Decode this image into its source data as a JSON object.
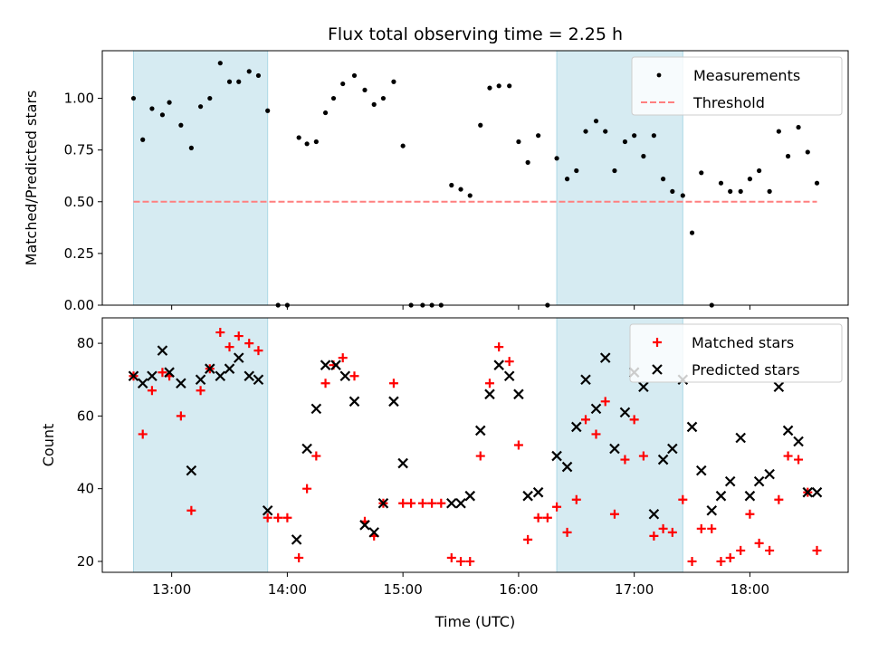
{
  "figure": {
    "title": "Flux total observing time = 2.25 h",
    "xlabel": "Time (UTC)"
  },
  "colors": {
    "shade": "#add8e6",
    "measurement": "#000000",
    "threshold": "#ff7f7f",
    "matched": "#ff0000",
    "predicted": "#000000"
  },
  "chart_data": [
    {
      "type": "scatter",
      "ylabel": "Matched/Predicted stars",
      "ylim": [
        0,
        1.23
      ],
      "xlim": [
        12.4,
        18.85
      ],
      "legend_placement": "upper-right",
      "shaded_intervals": [
        [
          12.67,
          13.83
        ],
        [
          16.33,
          17.42
        ]
      ],
      "yticks": [
        {
          "v": 0.0,
          "label": "0.00"
        },
        {
          "v": 0.25,
          "label": "0.25"
        },
        {
          "v": 0.5,
          "label": "0.50"
        },
        {
          "v": 0.75,
          "label": "0.75"
        },
        {
          "v": 1.0,
          "label": "1.00"
        }
      ],
      "series": [
        {
          "name": "Measurements",
          "kind": "dot",
          "x": [
            12.67,
            12.75,
            12.83,
            12.92,
            12.98,
            13.08,
            13.17,
            13.25,
            13.33,
            13.42,
            13.5,
            13.58,
            13.67,
            13.75,
            13.83,
            13.92,
            14.0,
            14.1,
            14.17,
            14.25,
            14.33,
            14.4,
            14.48,
            14.58,
            14.67,
            14.75,
            14.83,
            14.92,
            15.0,
            15.07,
            15.17,
            15.25,
            15.33,
            15.42,
            15.5,
            15.58,
            15.67,
            15.75,
            15.83,
            15.92,
            16.0,
            16.08,
            16.17,
            16.25,
            16.33,
            16.42,
            16.5,
            16.58,
            16.67,
            16.75,
            16.83,
            16.92,
            17.0,
            17.08,
            17.17,
            17.25,
            17.33,
            17.42,
            17.5,
            17.58,
            17.67,
            17.75,
            17.83,
            17.92,
            18.0,
            18.08,
            18.17,
            18.25,
            18.33,
            18.42,
            18.5,
            18.58
          ],
          "y": [
            1.0,
            0.8,
            0.95,
            0.92,
            0.98,
            0.87,
            0.76,
            0.96,
            1.0,
            1.17,
            1.08,
            1.08,
            1.13,
            1.11,
            0.94,
            0.0,
            0.0,
            0.81,
            0.78,
            0.79,
            0.93,
            1.0,
            1.07,
            1.11,
            1.04,
            0.97,
            1.0,
            1.08,
            0.77,
            0.0,
            0.0,
            0.0,
            0.0,
            0.58,
            0.56,
            0.53,
            0.87,
            1.05,
            1.06,
            1.06,
            0.79,
            0.69,
            0.82,
            0.0,
            0.71,
            0.61,
            0.65,
            0.84,
            0.89,
            0.84,
            0.65,
            0.79,
            0.82,
            0.72,
            0.82,
            0.61,
            0.55,
            0.53,
            0.35,
            0.64,
            0.0,
            0.59,
            0.55,
            0.55,
            0.61,
            0.65,
            0.55,
            0.84,
            0.72,
            0.86,
            0.74,
            0.59
          ]
        },
        {
          "name": "Threshold",
          "kind": "dashed-line",
          "x": [
            12.67,
            18.58
          ],
          "y": [
            0.5,
            0.5
          ]
        }
      ]
    },
    {
      "type": "scatter",
      "ylabel": "Count",
      "ylim": [
        17,
        87
      ],
      "xlim": [
        12.4,
        18.85
      ],
      "legend_placement": "upper-right",
      "shaded_intervals": [
        [
          12.67,
          13.83
        ],
        [
          16.33,
          17.42
        ]
      ],
      "yticks": [
        {
          "v": 20,
          "label": "20"
        },
        {
          "v": 40,
          "label": "40"
        },
        {
          "v": 60,
          "label": "60"
        },
        {
          "v": 80,
          "label": "80"
        }
      ],
      "xticks": [
        {
          "v": 13,
          "label": "13:00"
        },
        {
          "v": 14,
          "label": "14:00"
        },
        {
          "v": 15,
          "label": "15:00"
        },
        {
          "v": 16,
          "label": "16:00"
        },
        {
          "v": 17,
          "label": "17:00"
        },
        {
          "v": 18,
          "label": "18:00"
        }
      ],
      "series": [
        {
          "name": "Matched stars",
          "kind": "plus",
          "x": [
            12.67,
            12.75,
            12.83,
            12.92,
            12.98,
            13.08,
            13.17,
            13.25,
            13.33,
            13.42,
            13.5,
            13.58,
            13.67,
            13.75,
            13.83,
            13.92,
            14.0,
            14.1,
            14.17,
            14.25,
            14.33,
            14.4,
            14.48,
            14.58,
            14.67,
            14.75,
            14.83,
            14.92,
            15.0,
            15.07,
            15.17,
            15.25,
            15.33,
            15.42,
            15.5,
            15.58,
            15.67,
            15.75,
            15.83,
            15.92,
            16.0,
            16.08,
            16.17,
            16.25,
            16.33,
            16.42,
            16.5,
            16.58,
            16.67,
            16.75,
            16.83,
            16.92,
            17.0,
            17.08,
            17.17,
            17.25,
            17.33,
            17.42,
            17.5,
            17.58,
            17.67,
            17.75,
            17.83,
            17.92,
            18.0,
            18.08,
            18.17,
            18.25,
            18.33,
            18.42,
            18.5,
            18.58
          ],
          "y": [
            71,
            55,
            67,
            72,
            71,
            60,
            34,
            67,
            73,
            83,
            79,
            82,
            80,
            78,
            32,
            32,
            32,
            21,
            40,
            49,
            69,
            74,
            76,
            71,
            31,
            27,
            36,
            69,
            36,
            36,
            36,
            36,
            36,
            21,
            20,
            20,
            49,
            69,
            79,
            75,
            52,
            26,
            32,
            32,
            35,
            28,
            37,
            59,
            55,
            64,
            33,
            48,
            59,
            49,
            27,
            29,
            28,
            37,
            20,
            29,
            29,
            20,
            21,
            23,
            33,
            25,
            23,
            37,
            49,
            48,
            39,
            23
          ]
        },
        {
          "name": "Predicted stars",
          "kind": "cross",
          "x": [
            12.67,
            12.75,
            12.83,
            12.92,
            12.98,
            13.08,
            13.17,
            13.25,
            13.33,
            13.42,
            13.5,
            13.58,
            13.67,
            13.75,
            13.83,
            14.08,
            14.17,
            14.25,
            14.33,
            14.42,
            14.5,
            14.58,
            14.67,
            14.75,
            14.83,
            14.92,
            15.0,
            15.42,
            15.5,
            15.58,
            15.67,
            15.75,
            15.83,
            15.92,
            16.0,
            16.08,
            16.17,
            16.33,
            16.42,
            16.5,
            16.58,
            16.67,
            16.75,
            16.83,
            16.92,
            17.0,
            17.08,
            17.17,
            17.25,
            17.33,
            17.42,
            17.5,
            17.58,
            17.67,
            17.75,
            17.83,
            17.92,
            18.0,
            18.08,
            18.17,
            18.25,
            18.33,
            18.42,
            18.5,
            18.58
          ],
          "y": [
            71,
            69,
            71,
            78,
            72,
            69,
            45,
            70,
            73,
            71,
            73,
            76,
            71,
            70,
            34,
            26,
            51,
            62,
            74,
            74,
            71,
            64,
            30,
            28,
            36,
            64,
            47,
            36,
            36,
            38,
            56,
            66,
            74,
            71,
            66,
            38,
            39,
            49,
            46,
            57,
            70,
            62,
            76,
            51,
            61,
            72,
            68,
            33,
            48,
            51,
            70,
            57,
            45,
            34,
            38,
            42,
            54,
            38,
            42,
            44,
            68,
            56,
            53,
            39,
            39
          ]
        }
      ]
    }
  ]
}
